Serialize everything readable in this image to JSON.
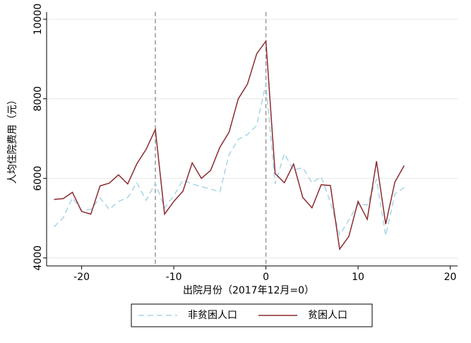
{
  "chart_data": {
    "type": "line",
    "x_label": "出院月份（2017年12月=0）",
    "y_label": "人均住院费用（元）",
    "x": [
      -23,
      -22,
      -21,
      -20,
      -19,
      -18,
      -17,
      -16,
      -15,
      -14,
      -13,
      -12,
      -11,
      -10,
      -9,
      -8,
      -7,
      -6,
      -5,
      -4,
      -3,
      -2,
      -1,
      0,
      1,
      2,
      3,
      4,
      5,
      6,
      7,
      8,
      9,
      10,
      11,
      12,
      13,
      14,
      15
    ],
    "series": [
      {
        "name": "非贫困人口",
        "color": "#a8d4e6",
        "dashed": true,
        "values": [
          4780,
          5010,
          5510,
          5200,
          5220,
          5510,
          5220,
          5420,
          5520,
          5890,
          5450,
          5880,
          5260,
          5560,
          5960,
          5860,
          5790,
          5730,
          5660,
          6600,
          6980,
          7100,
          7330,
          8380,
          5860,
          6620,
          6210,
          6270,
          5890,
          6040,
          5400,
          4580,
          4950,
          5360,
          5330,
          5980,
          4560,
          5610,
          5770
        ]
      },
      {
        "name": "贫困人口",
        "color": "#8b2a2f",
        "dashed": false,
        "values": [
          5470,
          5490,
          5650,
          5170,
          5100,
          5810,
          5880,
          6090,
          5860,
          6370,
          6730,
          7230,
          5100,
          5420,
          5680,
          6390,
          6000,
          6200,
          6780,
          7160,
          8000,
          8370,
          9130,
          9450,
          6120,
          5890,
          6360,
          5520,
          5260,
          5840,
          5820,
          4220,
          4540,
          5420,
          4970,
          6430,
          4850,
          5910,
          6320
        ]
      }
    ],
    "vlines": [
      -12,
      0
    ],
    "xlim": [
      -23.8,
      20.8
    ],
    "xticks": [
      -20,
      -10,
      0,
      10,
      20
    ],
    "ylim": [
      3800,
      10180
    ],
    "yticks": [
      4000,
      6000,
      8000,
      10000
    ],
    "grid": true,
    "legend": "bottom"
  }
}
